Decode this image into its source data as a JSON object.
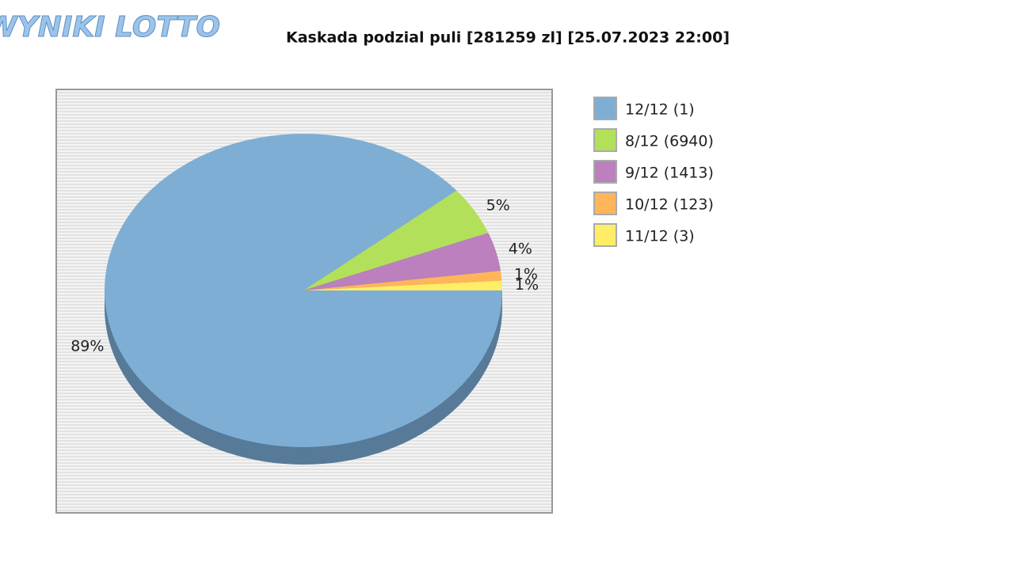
{
  "logo": "WYNIKI LOTTO",
  "chart_data": {
    "type": "pie",
    "title": "Kaskada podzial puli [281259 zl] [25.07.2023 22:00]",
    "categories": [
      "12/12 (1)",
      "8/12 (6940)",
      "9/12 (1413)",
      "10/12 (123)",
      "11/12 (3)"
    ],
    "values": [
      89,
      5,
      4,
      1,
      1
    ],
    "value_labels": [
      "89%",
      "5%",
      "4%",
      "1%",
      "1%"
    ],
    "colors": [
      "#7eaed4",
      "#b3e05a",
      "#bb80bd",
      "#ffb55a",
      "#ffee65"
    ],
    "legend": "right"
  }
}
